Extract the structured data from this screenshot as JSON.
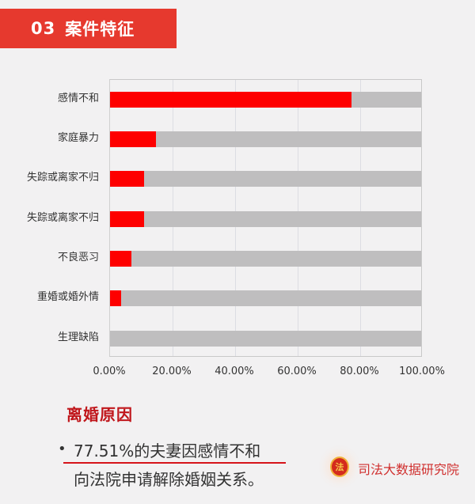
{
  "header": {
    "number": "03",
    "title": "案件特征"
  },
  "chart_data": {
    "type": "bar",
    "orientation": "horizontal",
    "stacked_with_background": true,
    "categories": [
      "感情不和",
      "家庭暴力",
      "失踪或离家不归",
      "失踪或离家不归",
      "不良恶习",
      "重婚或婚外情",
      "生理缺陷"
    ],
    "values": [
      77.51,
      14.7,
      10.9,
      10.9,
      6.8,
      3.5,
      0
    ],
    "value_unit": "%",
    "background_value": 100,
    "xlabel": "",
    "ylabel": "",
    "xlim": [
      0,
      100
    ],
    "xticks": [
      "0.00%",
      "20.00%",
      "40.00%",
      "60.00%",
      "80.00%",
      "100.00%"
    ],
    "grid": true,
    "legend": null,
    "colors": {
      "bar": "#fe0000",
      "background": "#bfbebf"
    }
  },
  "summary": {
    "title": "离婚原因",
    "bullet": "•",
    "line1": "77.51%的夫妻因感情不和",
    "line2": "向法院申请解除婚姻关系。"
  },
  "footer": {
    "logo_glyph": "法",
    "org_name": "司法大数据研究院"
  },
  "colors": {
    "accent": "#e6392e",
    "title_red": "#c0161b",
    "background": "#f2f1f2"
  }
}
